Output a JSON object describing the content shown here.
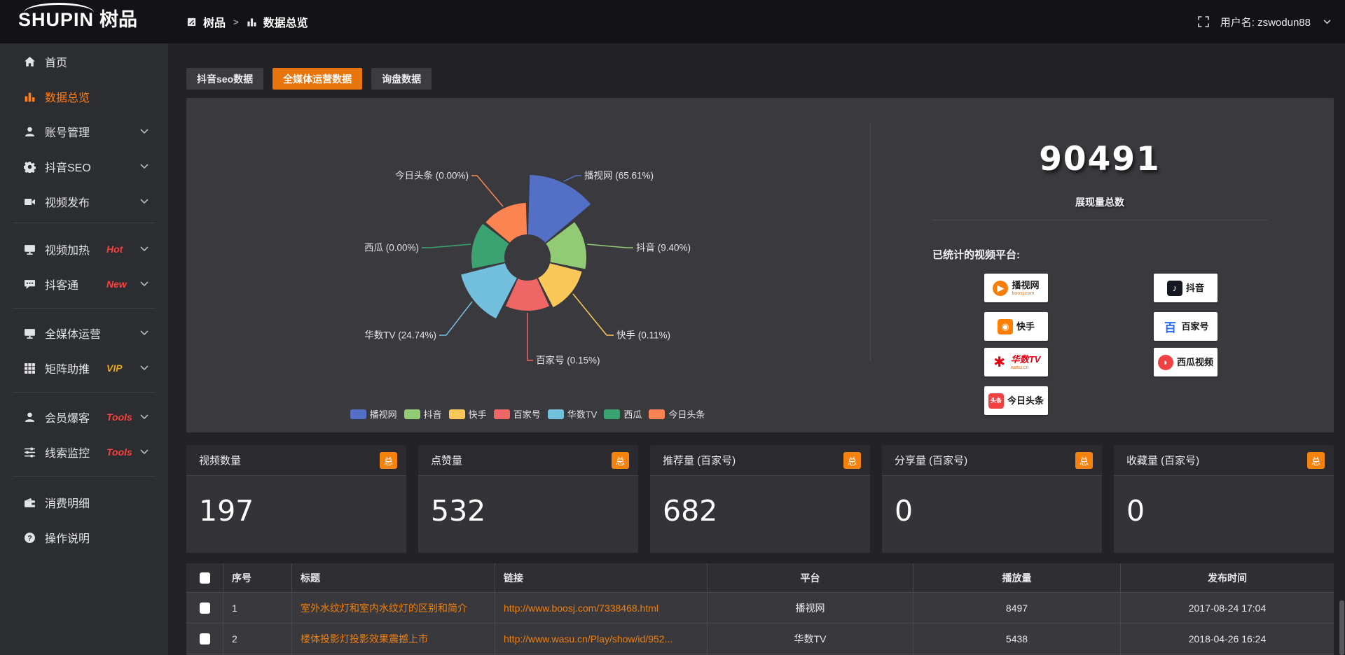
{
  "topbar": {
    "logo_en": "SHUPIN",
    "logo_cn": "树品",
    "breadcrumb": {
      "root": "树品",
      "separator": ">",
      "current": "数据总览"
    },
    "user_label": "用户名: zswodun88"
  },
  "sidebar": {
    "items": [
      {
        "label": "首页",
        "icon": "home",
        "active": false,
        "chevron": false,
        "tag": "",
        "tag_color": ""
      },
      {
        "label": "数据总览",
        "icon": "chart",
        "active": true,
        "chevron": false,
        "tag": "",
        "tag_color": ""
      },
      {
        "label": "账号管理",
        "icon": "user",
        "active": false,
        "chevron": true,
        "tag": "",
        "tag_color": ""
      },
      {
        "label": "抖音SEO",
        "icon": "gear",
        "active": false,
        "chevron": true,
        "tag": "",
        "tag_color": ""
      },
      {
        "label": "视频发布",
        "icon": "video",
        "active": false,
        "chevron": true,
        "tag": "",
        "tag_color": ""
      },
      {
        "label": "视频加热",
        "icon": "screen",
        "active": false,
        "chevron": true,
        "tag": "Hot",
        "tag_color": "#f9403e"
      },
      {
        "label": "抖客通",
        "icon": "chat",
        "active": false,
        "chevron": true,
        "tag": "New",
        "tag_color": "#f9403e"
      },
      {
        "label": "全媒体运营",
        "icon": "monitor",
        "active": false,
        "chevron": true,
        "tag": "",
        "tag_color": ""
      },
      {
        "label": "矩阵助推",
        "icon": "grid",
        "active": false,
        "chevron": true,
        "tag": "VIP",
        "tag_color": "#e8a716"
      },
      {
        "label": "会员爆客",
        "icon": "person",
        "active": false,
        "chevron": true,
        "tag": "Tools",
        "tag_color": "#f9403e"
      },
      {
        "label": "线索监控",
        "icon": "sliders",
        "active": false,
        "chevron": true,
        "tag": "Tools",
        "tag_color": "#f9403e"
      },
      {
        "label": "消费明细",
        "icon": "wallet",
        "active": false,
        "chevron": false,
        "tag": "",
        "tag_color": ""
      },
      {
        "label": "操作说明",
        "icon": "question",
        "active": false,
        "chevron": false,
        "tag": "",
        "tag_color": ""
      }
    ]
  },
  "tabs": [
    {
      "label": "抖音seo数据",
      "active": false
    },
    {
      "label": "全媒体运营数据",
      "active": true
    },
    {
      "label": "询盘数据",
      "active": false
    }
  ],
  "chart_data": {
    "type": "pie",
    "variant": "nightingale-rose",
    "title": "",
    "legend_position": "bottom",
    "label_format": "{name} ({percent}%)",
    "series": [
      {
        "name": "播视网",
        "percent": 65.61,
        "color": "#5470c6"
      },
      {
        "name": "抖音",
        "percent": 9.4,
        "color": "#91cc75"
      },
      {
        "name": "快手",
        "percent": 0.11,
        "color": "#fac858"
      },
      {
        "name": "百家号",
        "percent": 0.15,
        "color": "#ee6666"
      },
      {
        "name": "华数TV",
        "percent": 24.74,
        "color": "#73c0de"
      },
      {
        "name": "西瓜",
        "percent": 0.0,
        "color": "#3ba272"
      },
      {
        "name": "今日头条",
        "percent": 0.0,
        "color": "#fc8452"
      }
    ]
  },
  "summary": {
    "total_value": "90491",
    "total_label": "展现量总数",
    "platforms_title": "已统计的视频平台:",
    "platforms": [
      {
        "name": "播视网",
        "sub": "boosj.com",
        "style": "boosj"
      },
      {
        "name": "抖音",
        "sub": "",
        "style": "douyin"
      },
      {
        "name": "快手",
        "sub": "",
        "style": "kuaishou"
      },
      {
        "name": "百家号",
        "sub": "",
        "style": "baijia"
      },
      {
        "name": "华数TV",
        "sub": "wasu.cn",
        "style": "wasu"
      },
      {
        "name": "西瓜视频",
        "sub": "",
        "style": "xigua"
      },
      {
        "name": "今日头条",
        "sub": "",
        "style": "toutiao"
      }
    ]
  },
  "stat_cards": [
    {
      "label": "视频数量",
      "badge": "总",
      "value": "197"
    },
    {
      "label": "点赞量",
      "badge": "总",
      "value": "532"
    },
    {
      "label": "推荐量 (百家号)",
      "badge": "总",
      "value": "682"
    },
    {
      "label": "分享量 (百家号)",
      "badge": "总",
      "value": "0"
    },
    {
      "label": "收藏量 (百家号)",
      "badge": "总",
      "value": "0"
    }
  ],
  "table": {
    "headers": [
      "序号",
      "标题",
      "链接",
      "平台",
      "播放量",
      "发布时间"
    ],
    "rows": [
      {
        "index": "1",
        "title": "室外水纹灯和室内水纹灯的区别和简介",
        "link": "http://www.boosj.com/7338468.html",
        "platform": "播视网",
        "plays": "8497",
        "time": "2017-08-24 17:04"
      },
      {
        "index": "2",
        "title": "楼体投影灯投影效果震撼上市",
        "link": "http://www.wasu.cn/Play/show/id/952...",
        "platform": "华数TV",
        "plays": "5438",
        "time": "2018-04-26 16:24"
      }
    ]
  },
  "theme": {
    "accent_orange": "#e9750e",
    "link_orange": "#ee7f0e",
    "badge_orange": "#f5820d",
    "sidebar_active": "#ff7e17",
    "panel_bg": "#3a3a3e",
    "topbar_bg": "#131317",
    "sidebar_bg": "#2b2d31"
  }
}
